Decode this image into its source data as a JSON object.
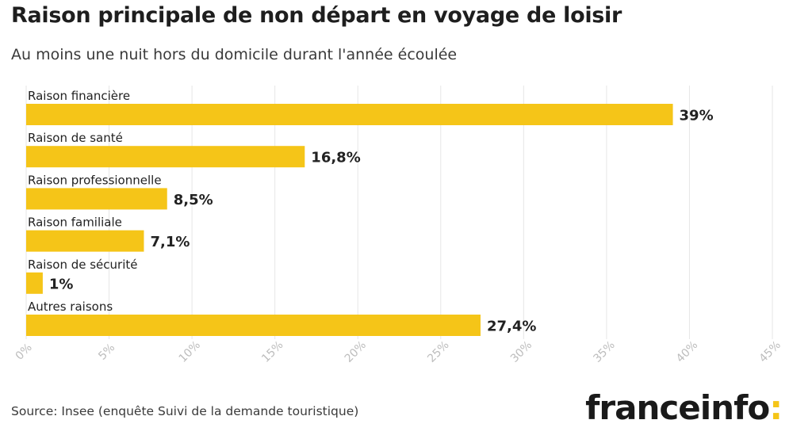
{
  "header": {
    "title": "Raison principale de non départ en voyage de loisir",
    "subtitle": "Au moins une nuit hors du domicile durant l'année écoulée"
  },
  "footer": {
    "source": "Source: Insee (enquête Suivi de la demande touristique)",
    "logo_text": "franceinfo",
    "logo_accent": ":"
  },
  "colors": {
    "bar": "#f5c518",
    "grid": "#e6e6e6",
    "tick": "#bdbdbd",
    "text": "#222222"
  },
  "chart_data": {
    "type": "bar",
    "orientation": "horizontal",
    "categories": [
      "Raison financière",
      "Raison de santé",
      "Raison professionnelle",
      "Raison familiale",
      "Raison de sécurité",
      "Autres raisons"
    ],
    "values": [
      39,
      16.8,
      8.5,
      7.1,
      1,
      27.4
    ],
    "value_labels": [
      "39%",
      "16,8%",
      "8,5%",
      "7,1%",
      "1%",
      "27,4%"
    ],
    "xlim": [
      0,
      45
    ],
    "x_ticks": [
      0,
      5,
      10,
      15,
      20,
      25,
      30,
      35,
      40,
      45
    ],
    "x_tick_labels": [
      "0%",
      "5%",
      "10%",
      "15%",
      "20%",
      "25%",
      "30%",
      "35%",
      "40%",
      "45%"
    ],
    "grid": true
  }
}
